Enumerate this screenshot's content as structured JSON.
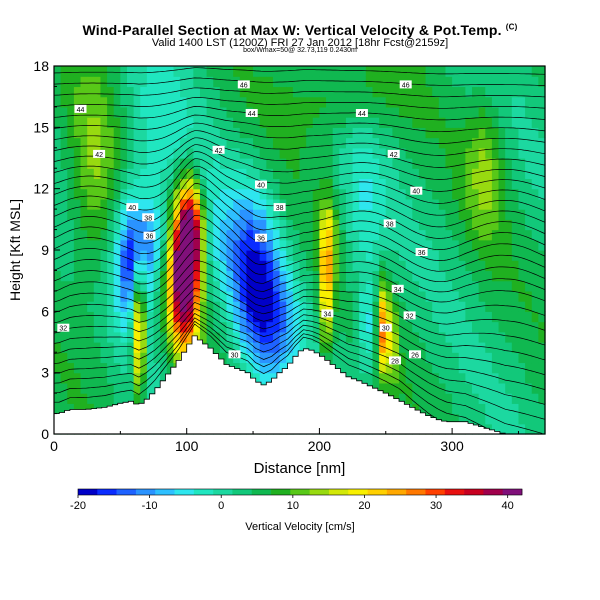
{
  "chart_data": {
    "type": "heatmap",
    "title": "Wind-Parallel Section at Max W: Vertical Velocity & Pot.Temp.",
    "title_mark": "(C)",
    "subtitle": "Valid 1400 LST (1200Z) FRI 27 Jan 2012 [18hr Fcst@2159z]",
    "subtitle2": "box/Wmax=50@ 32.73,119 0.2430m",
    "xlabel": "Distance [nm]",
    "ylabel": "Height [Kft MSL]",
    "xlim": [
      0,
      370
    ],
    "ylim": [
      0,
      18
    ],
    "xticks": [
      "0",
      "100",
      "200",
      "300"
    ],
    "xtick_values": [
      0,
      100,
      200,
      300
    ],
    "yticks": [
      "0",
      "3",
      "6",
      "9",
      "12",
      "15",
      "18"
    ],
    "ytick_values": [
      0,
      3,
      6,
      9,
      12,
      15,
      18
    ],
    "colorbar": {
      "label": "Vertical Velocity [cm/s]",
      "range": [
        -20,
        42
      ],
      "tick_labels": [
        "-20",
        "-10",
        "0",
        "10",
        "20",
        "30",
        "40"
      ],
      "tick_values": [
        -20,
        -10,
        0,
        10,
        20,
        30,
        40
      ],
      "colors": [
        "#0000c8",
        "#0a2cff",
        "#1e62ff",
        "#2a93ff",
        "#2ec0ff",
        "#2ee6ee",
        "#20e6c0",
        "#1cd8a0",
        "#12c87a",
        "#10b850",
        "#20b020",
        "#58c818",
        "#98da10",
        "#d2e808",
        "#f8f000",
        "#ffd000",
        "#ffa800",
        "#ff7800",
        "#ff4000",
        "#e81010",
        "#c80020",
        "#a0004c",
        "#80107a"
      ]
    },
    "terrain": {
      "x": [
        0,
        4,
        12,
        24,
        38,
        50,
        58,
        64,
        70,
        76,
        82,
        88,
        94,
        100,
        106,
        112,
        118,
        124,
        130,
        138,
        146,
        152,
        158,
        164,
        170,
        176,
        182,
        188,
        194,
        200,
        206,
        212,
        218,
        222,
        230,
        240,
        250,
        256,
        262,
        270,
        276,
        282,
        290,
        296,
        300
      ],
      "height": [
        1.0,
        1.0,
        1.2,
        1.2,
        1.3,
        1.5,
        1.6,
        1.4,
        1.7,
        2.1,
        2.6,
        3.1,
        3.6,
        4.2,
        4.8,
        4.5,
        4.2,
        3.8,
        3.4,
        3.2,
        3.0,
        2.6,
        2.4,
        2.6,
        3.0,
        3.3,
        3.8,
        4.2,
        4.1,
        3.9,
        3.6,
        3.3,
        3.0,
        2.8,
        2.6,
        2.3,
        2.0,
        1.8,
        1.6,
        1.3,
        1.1,
        0.9,
        0.7,
        0.6,
        0.6
      ]
    },
    "w_features": [
      {
        "x": 98,
        "z": 7.8,
        "sx": 8,
        "sz": 2.6,
        "w": 45
      },
      {
        "x": 104,
        "z": 10.0,
        "sx": 6,
        "sz": 1.6,
        "w": 25
      },
      {
        "x": 64,
        "z": 5.5,
        "sx": 3.5,
        "sz": 2.2,
        "w": 28
      },
      {
        "x": 60,
        "z": 8.5,
        "sx": 10,
        "sz": 2.2,
        "w": -22
      },
      {
        "x": 78,
        "z": 9.8,
        "sx": 9,
        "sz": 1.4,
        "w": -8
      },
      {
        "x": 152,
        "z": 7.0,
        "sx": 12,
        "sz": 3.0,
        "w": -18
      },
      {
        "x": 130,
        "z": 9.0,
        "sx": 18,
        "sz": 2.5,
        "w": -8
      },
      {
        "x": 170,
        "z": 5.2,
        "sx": 12,
        "sz": 2.2,
        "w": -10
      },
      {
        "x": 205,
        "z": 7.2,
        "sx": 3.5,
        "sz": 2.2,
        "w": 18
      },
      {
        "x": 208,
        "z": 9.5,
        "sx": 5,
        "sz": 1.5,
        "w": 8
      },
      {
        "x": 248,
        "z": 5.2,
        "sx": 3,
        "sz": 1.5,
        "w": 22
      },
      {
        "x": 236,
        "z": 5.3,
        "sx": 5,
        "sz": 1.6,
        "w": -10
      },
      {
        "x": 255,
        "z": 4.5,
        "sx": 3,
        "sz": 1.4,
        "w": 10
      },
      {
        "x": 232,
        "z": 10.5,
        "sx": 12,
        "sz": 3,
        "w": -7
      },
      {
        "x": 78,
        "z": 14.0,
        "sx": 22,
        "sz": 3.0,
        "w": -6
      },
      {
        "x": 30,
        "z": 12.5,
        "sx": 14,
        "sz": 4,
        "w": 8
      },
      {
        "x": 325,
        "z": 13.0,
        "sx": 10,
        "sz": 2.5,
        "w": 8
      },
      {
        "x": 215,
        "z": 16.5,
        "sx": 30,
        "sz": 1.5,
        "w": 6
      }
    ],
    "theta_labels": [
      {
        "x": 143,
        "z": 17.1,
        "label": "46"
      },
      {
        "x": 265,
        "z": 17.1,
        "label": "46"
      },
      {
        "x": 20,
        "z": 15.9,
        "label": "44"
      },
      {
        "x": 149,
        "z": 15.7,
        "label": "44"
      },
      {
        "x": 232,
        "z": 15.7,
        "label": "44"
      },
      {
        "x": 34,
        "z": 13.7,
        "label": "42"
      },
      {
        "x": 124,
        "z": 13.9,
        "label": "42"
      },
      {
        "x": 256,
        "z": 13.7,
        "label": "42"
      },
      {
        "x": 156,
        "z": 12.2,
        "label": "40"
      },
      {
        "x": 273,
        "z": 11.9,
        "label": "40"
      },
      {
        "x": 59,
        "z": 11.1,
        "label": "40"
      },
      {
        "x": 71,
        "z": 10.6,
        "label": "38"
      },
      {
        "x": 170,
        "z": 11.1,
        "label": "38"
      },
      {
        "x": 253,
        "z": 10.3,
        "label": "38"
      },
      {
        "x": 72,
        "z": 9.7,
        "label": "36"
      },
      {
        "x": 156,
        "z": 9.6,
        "label": "36"
      },
      {
        "x": 277,
        "z": 8.9,
        "label": "36"
      },
      {
        "x": 259,
        "z": 7.1,
        "label": "34"
      },
      {
        "x": 206,
        "z": 5.9,
        "label": "34"
      },
      {
        "x": 268,
        "z": 5.8,
        "label": "32"
      },
      {
        "x": 7,
        "z": 5.2,
        "label": "32"
      },
      {
        "x": 250,
        "z": 5.2,
        "label": "30"
      },
      {
        "x": 136,
        "z": 3.9,
        "label": "30"
      },
      {
        "x": 257,
        "z": 3.6,
        "label": "28"
      },
      {
        "x": 272,
        "z": 3.9,
        "label": "26"
      }
    ]
  }
}
